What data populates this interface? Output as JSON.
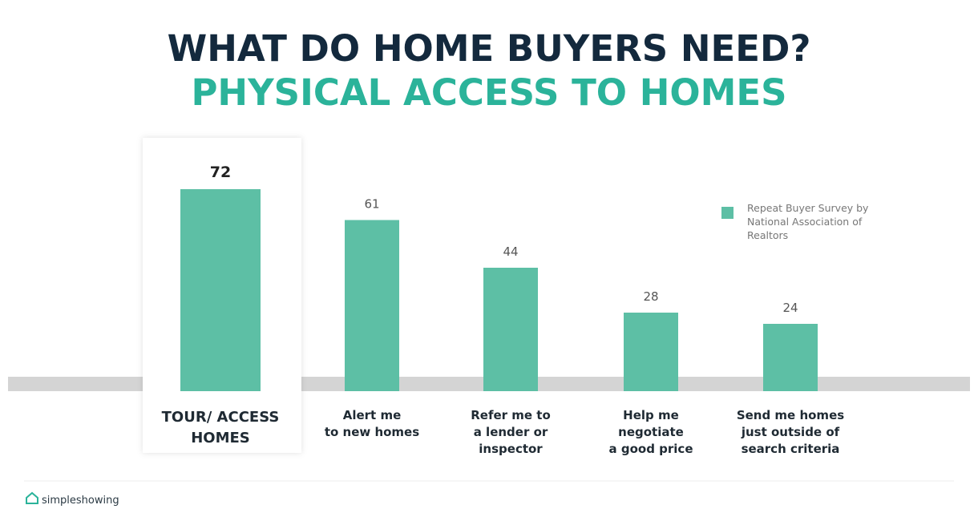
{
  "chart_data": {
    "type": "bar",
    "title": "WHAT DO HOME BUYERS NEED?",
    "subtitle": "PHYSICAL ACCESS TO HOMES",
    "categories": [
      "TOUR/ ACCESS\nHOMES",
      "Alert me\nto new homes",
      "Refer me to\na lender or\ninspector",
      "Help me\nnegotiate\na good price",
      "Send me homes\njust outside of\nsearch criteria"
    ],
    "series": [
      {
        "name": "Repeat Buyer Survey by\nNational Association of\nRealtors",
        "color": "#5dbfa5",
        "values": [
          72,
          61,
          44,
          28,
          24
        ]
      }
    ],
    "legend": "right"
  },
  "footer": {
    "logo": "simpleshowing"
  }
}
